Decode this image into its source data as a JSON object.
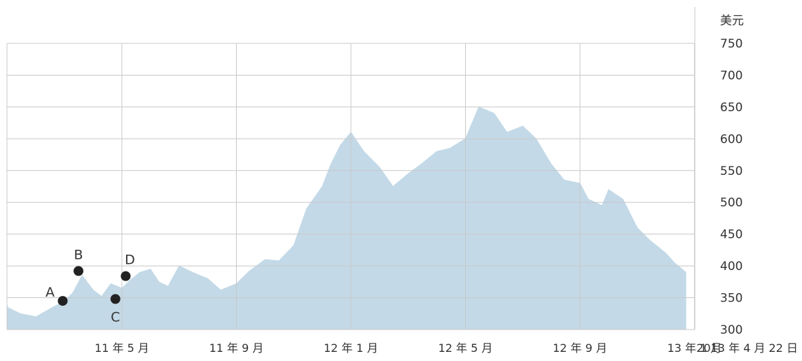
{
  "colors": {
    "area": "#c3d9e7",
    "grid": "#c8c8c8",
    "marker": "#222222",
    "text": "#333333"
  },
  "chart_data": {
    "type": "area",
    "title": "",
    "xlabel": "",
    "ylabel": "",
    "unit_label": "美元",
    "ylim": [
      300,
      750
    ],
    "y_ticks": [
      750,
      700,
      650,
      600,
      550,
      500,
      450,
      400,
      350,
      300
    ],
    "y_axis_position": "right",
    "grid": true,
    "x_tick_labels": [
      "11 年 5 月",
      "11 年 9 月",
      "12 年 1 月",
      "12 年 5 月",
      "12 年 9 月",
      "13 年 1 月"
    ],
    "end_date_label": "2013 年 4 月 22 日",
    "series": [
      {
        "x": [
          "2011-03-01",
          "2011-03-15",
          "2011-04-01",
          "2011-04-15",
          "2011-05-01",
          "2011-05-15",
          "2011-06-01",
          "2011-06-15",
          "2011-07-01",
          "2011-07-10",
          "2011-07-20",
          "2011-08-01",
          "2011-08-10",
          "2011-08-20",
          "2011-09-01",
          "2011-09-10",
          "2011-09-20",
          "2011-10-01",
          "2011-10-10",
          "2011-10-20",
          "2011-11-01",
          "2011-11-15",
          "2011-12-01",
          "2011-12-15",
          "2012-01-01",
          "2012-01-15",
          "2012-02-01",
          "2012-02-15",
          "2012-03-01",
          "2012-03-15",
          "2012-04-01",
          "2012-04-10",
          "2012-04-20",
          "2012-05-01",
          "2012-05-15",
          "2012-06-01",
          "2012-06-15",
          "2012-07-01",
          "2012-07-15",
          "2012-08-01",
          "2012-08-15",
          "2012-09-01",
          "2012-09-15",
          "2012-10-01",
          "2012-10-15",
          "2012-11-01",
          "2012-11-15",
          "2012-12-01",
          "2012-12-15",
          "2013-01-01",
          "2013-01-10",
          "2013-01-25",
          "2013-02-01",
          "2013-02-15",
          "2013-03-01",
          "2013-03-15",
          "2013-04-01",
          "2013-04-10",
          "2013-04-22"
        ],
        "values": [
          343,
          338,
          332,
          340,
          335,
          325,
          320,
          332,
          345,
          358,
          385,
          362,
          352,
          372,
          365,
          378,
          390,
          395,
          375,
          368,
          400,
          390,
          380,
          362,
          372,
          392,
          410,
          408,
          432,
          490,
          525,
          560,
          590,
          610,
          580,
          555,
          525,
          545,
          560,
          580,
          585,
          600,
          650,
          640,
          610,
          620,
          600,
          560,
          535,
          530,
          505,
          495,
          520,
          505,
          460,
          440,
          420,
          405,
          390
        ]
      }
    ],
    "annotations": [
      {
        "label": "A",
        "x": "2011-06-29",
        "y": 345
      },
      {
        "label": "B",
        "x": "2011-07-16",
        "y": 392
      },
      {
        "label": "C",
        "x": "2011-08-25",
        "y": 348
      },
      {
        "label": "D",
        "x": "2011-09-05",
        "y": 384
      }
    ]
  }
}
